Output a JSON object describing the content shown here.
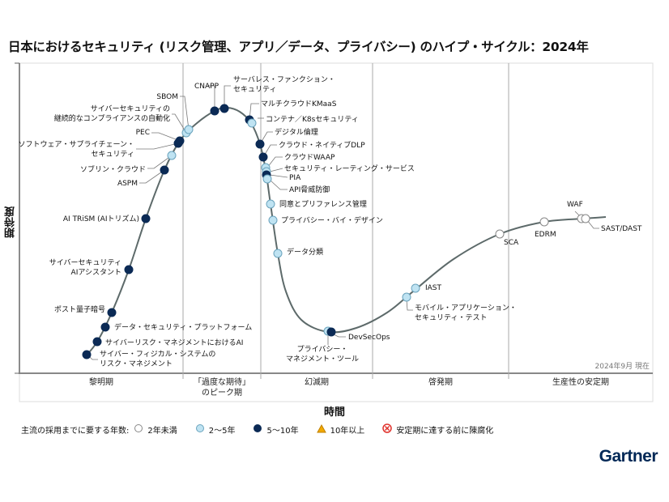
{
  "title": "日本におけるセキュリティ (リスク管理、アプリ／データ、プライバシー) のハイプ・サイクル：2024年",
  "y_axis_label": "期待度",
  "x_axis_label": "時間",
  "as_of": "2024年9月 現在",
  "phases": [
    "黎明期",
    "「過度な期待」\nのピーク期",
    "幻滅期",
    "啓発期",
    "生産性の安定期"
  ],
  "legend": {
    "title": "主流の採用までに要する年数:",
    "items": [
      {
        "label": "2年未満",
        "symbol": "white-circle",
        "color": "#ffffff"
      },
      {
        "label": "2～5年",
        "symbol": "light-blue-circle",
        "color": "#bfe3f2"
      },
      {
        "label": "5～10年",
        "symbol": "dark-blue-circle",
        "color": "#0b2a55"
      },
      {
        "label": "10年以上",
        "symbol": "orange-triangle",
        "color": "#f2a900"
      },
      {
        "label": "安定期に達する前に陳腐化",
        "symbol": "red-x-circle",
        "color": "#e0312b"
      }
    ]
  },
  "technologies": [
    {
      "label": "サイバー・フィジカル・システムの\nリスク・マネジメント",
      "years": "5～10年"
    },
    {
      "label": "サイバーリスク・マネジメントにおけるAI",
      "years": "5～10年"
    },
    {
      "label": "データ・セキュリティ・プラットフォーム",
      "years": "5～10年"
    },
    {
      "label": "ポスト量子暗号",
      "years": "5～10年"
    },
    {
      "label": "サイバーセキュリティ\nAIアシスタント",
      "years": "5～10年"
    },
    {
      "label": "AI TRiSM (AIトリズム)",
      "years": "5～10年"
    },
    {
      "label": "ASPM",
      "years": "5～10年"
    },
    {
      "label": "ソブリン・クラウド",
      "years": "2～5年"
    },
    {
      "label": "ソフトウェア・サプライチェーン・\nセキュリティ",
      "years": "5～10年"
    },
    {
      "label": "PEC",
      "years": "5～10年"
    },
    {
      "label": "サイバーセキュリティの\n継続的なコンプライアンスの自動化",
      "years": "2～5年"
    },
    {
      "label": "SBOM",
      "years": "2～5年"
    },
    {
      "label": "CNAPP",
      "years": "5～10年"
    },
    {
      "label": "サーバレス・ファンクション・\nセキュリティ",
      "years": "5～10年"
    },
    {
      "label": "マルチクラウドKMaaS",
      "years": "5～10年"
    },
    {
      "label": "コンテナ／K8sセキュリティ",
      "years": "2～5年"
    },
    {
      "label": "デジタル倫理",
      "years": "5～10年"
    },
    {
      "label": "クラウド・ネイティブDLP",
      "years": "5～10年"
    },
    {
      "label": "クラウドWAAP",
      "years": "2～5年"
    },
    {
      "label": "セキュリティ・レーティング・サービス",
      "years": "2～5年"
    },
    {
      "label": "PIA",
      "years": "5～10年"
    },
    {
      "label": "API脅威防御",
      "years": "2～5年"
    },
    {
      "label": "同意とプリファレンス管理",
      "years": "2～5年"
    },
    {
      "label": "プライバシー・バイ・デザイン",
      "years": "2～5年"
    },
    {
      "label": "データ分類",
      "years": "2～5年"
    },
    {
      "label": "プライバシー・\nマネジメント・ツール",
      "years": "2～5年"
    },
    {
      "label": "DevSecOps",
      "years": "5～10年"
    },
    {
      "label": "モバイル・アプリケーション・\nセキュリティ・テスト",
      "years": "2～5年"
    },
    {
      "label": "IAST",
      "years": "2～5年"
    },
    {
      "label": "SCA",
      "years": "2年未満"
    },
    {
      "label": "EDRM",
      "years": "2年未満"
    },
    {
      "label": "WAF",
      "years": "2年未満"
    },
    {
      "label": "SAST/DAST",
      "years": "2年未満"
    }
  ],
  "brand": "Gartner"
}
